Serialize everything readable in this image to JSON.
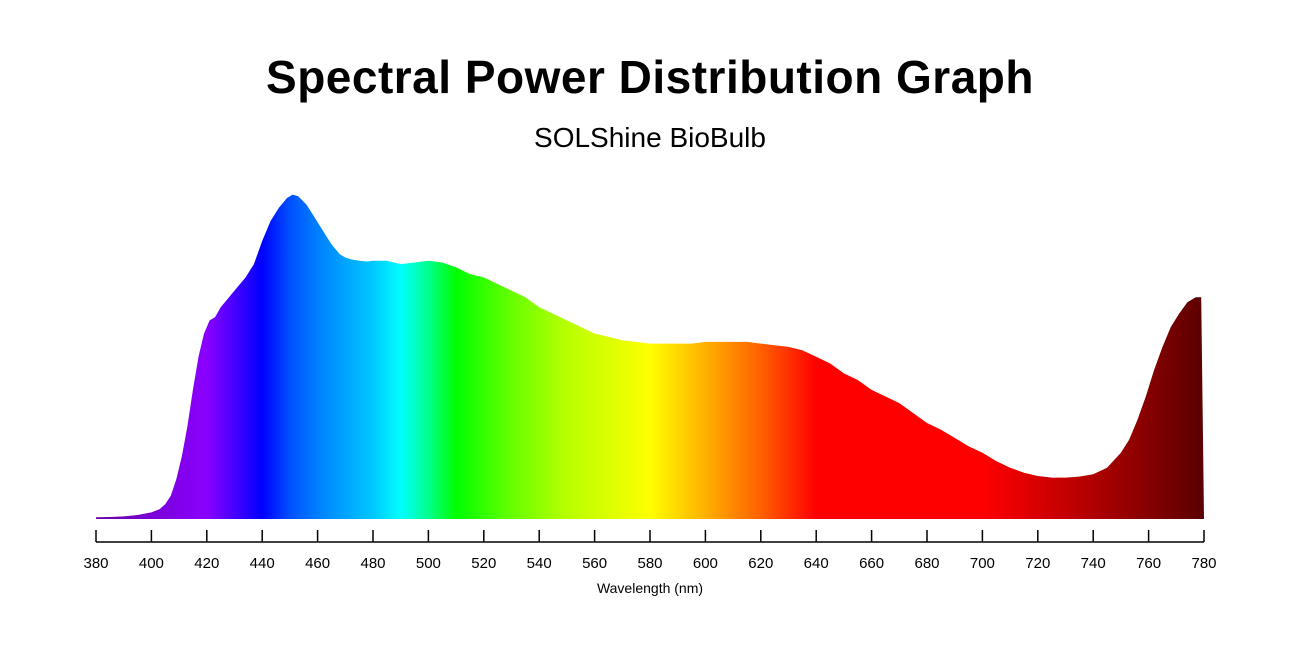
{
  "chart_data": {
    "type": "area",
    "title": "Spectral Power Distribution Graph",
    "subtitle": "SOLShine BioBulb",
    "xlabel": "Wavelength (nm)",
    "ylabel": "",
    "xlim": [
      380,
      780
    ],
    "ylim": [
      0,
      1
    ],
    "x_ticks": [
      380,
      400,
      420,
      440,
      460,
      480,
      500,
      520,
      540,
      560,
      580,
      600,
      620,
      640,
      660,
      680,
      700,
      720,
      740,
      760,
      780
    ],
    "x_tick_labels": [
      "380",
      "400",
      "420",
      "440",
      "460",
      "480",
      "500",
      "520",
      "540",
      "560",
      "580",
      "600",
      "620",
      "640",
      "660",
      "680",
      "700",
      "720",
      "740",
      "760",
      "780"
    ],
    "grid": false,
    "series": [
      {
        "x": [
          380,
          385,
          390,
          395,
          400,
          403,
          405,
          407,
          409,
          411,
          413,
          415,
          417,
          419,
          421,
          423,
          425,
          428,
          431,
          434,
          437,
          440,
          443,
          446,
          449,
          451,
          453,
          456,
          459,
          462,
          465,
          468,
          470,
          472,
          475,
          478,
          480,
          485,
          490,
          495,
          500,
          505,
          510,
          515,
          520,
          525,
          530,
          535,
          540,
          545,
          550,
          555,
          560,
          565,
          570,
          575,
          580,
          585,
          590,
          595,
          600,
          605,
          610,
          615,
          620,
          625,
          630,
          635,
          640,
          645,
          650,
          655,
          660,
          665,
          670,
          675,
          680,
          685,
          690,
          695,
          700,
          705,
          710,
          715,
          720,
          725,
          730,
          735,
          740,
          745,
          750,
          753,
          756,
          759,
          762,
          765,
          768,
          771,
          774,
          777,
          778,
          779,
          780
        ],
        "values": [
          0.005,
          0.006,
          0.008,
          0.012,
          0.02,
          0.03,
          0.045,
          0.07,
          0.12,
          0.19,
          0.28,
          0.39,
          0.49,
          0.56,
          0.6,
          0.61,
          0.64,
          0.67,
          0.7,
          0.73,
          0.77,
          0.84,
          0.9,
          0.94,
          0.97,
          0.98,
          0.975,
          0.95,
          0.91,
          0.87,
          0.83,
          0.8,
          0.79,
          0.785,
          0.78,
          0.778,
          0.78,
          0.78,
          0.77,
          0.775,
          0.78,
          0.775,
          0.76,
          0.74,
          0.73,
          0.71,
          0.69,
          0.67,
          0.64,
          0.62,
          0.6,
          0.58,
          0.56,
          0.55,
          0.54,
          0.535,
          0.53,
          0.53,
          0.53,
          0.53,
          0.535,
          0.535,
          0.535,
          0.535,
          0.53,
          0.525,
          0.52,
          0.51,
          0.49,
          0.47,
          0.44,
          0.42,
          0.39,
          0.37,
          0.35,
          0.32,
          0.29,
          0.27,
          0.245,
          0.22,
          0.2,
          0.175,
          0.155,
          0.14,
          0.13,
          0.125,
          0.125,
          0.128,
          0.135,
          0.155,
          0.2,
          0.24,
          0.3,
          0.37,
          0.45,
          0.52,
          0.58,
          0.62,
          0.655,
          0.67,
          0.67,
          0.67,
          0.0
        ]
      }
    ],
    "fill_colors": [
      {
        "wavelength": 380,
        "color": "#6a00a8"
      },
      {
        "wavelength": 400,
        "color": "#7a00d6"
      },
      {
        "wavelength": 420,
        "color": "#8a00ff"
      },
      {
        "wavelength": 440,
        "color": "#0000ff"
      },
      {
        "wavelength": 450,
        "color": "#0050ff"
      },
      {
        "wavelength": 460,
        "color": "#0080ff"
      },
      {
        "wavelength": 480,
        "color": "#00c8ff"
      },
      {
        "wavelength": 490,
        "color": "#00ffff"
      },
      {
        "wavelength": 500,
        "color": "#00ff8c"
      },
      {
        "wavelength": 510,
        "color": "#00ff00"
      },
      {
        "wavelength": 530,
        "color": "#66ff00"
      },
      {
        "wavelength": 550,
        "color": "#b8ff00"
      },
      {
        "wavelength": 580,
        "color": "#ffff00"
      },
      {
        "wavelength": 600,
        "color": "#ffb000"
      },
      {
        "wavelength": 620,
        "color": "#ff6000"
      },
      {
        "wavelength": 640,
        "color": "#ff0000"
      },
      {
        "wavelength": 700,
        "color": "#ff0000"
      },
      {
        "wavelength": 740,
        "color": "#b00000"
      },
      {
        "wavelength": 780,
        "color": "#5a0000"
      }
    ],
    "axis_color": "#000000"
  }
}
